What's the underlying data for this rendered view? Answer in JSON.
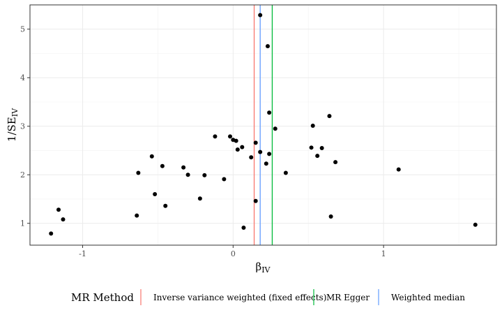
{
  "chart_data": {
    "type": "scatter",
    "xlabel": "β",
    "xlabel_sub": "IV",
    "ylabel": "1/SE",
    "ylabel_sub": "IV",
    "xlim": [
      -1.35,
      1.75
    ],
    "ylim": [
      0.55,
      5.5
    ],
    "x_ticks": [
      -1,
      0,
      1
    ],
    "x_tick_labels": [
      "-1",
      "0",
      "1"
    ],
    "y_ticks": [
      1,
      2,
      3,
      4,
      5
    ],
    "y_tick_labels": [
      "1",
      "2",
      "3",
      "4",
      "5"
    ],
    "grid": true,
    "points": [
      {
        "x": -1.21,
        "y": 0.79
      },
      {
        "x": -1.16,
        "y": 1.28
      },
      {
        "x": -1.13,
        "y": 1.08
      },
      {
        "x": -0.64,
        "y": 1.16
      },
      {
        "x": -0.63,
        "y": 2.04
      },
      {
        "x": -0.54,
        "y": 2.38
      },
      {
        "x": -0.52,
        "y": 1.6
      },
      {
        "x": -0.47,
        "y": 2.18
      },
      {
        "x": -0.45,
        "y": 1.36
      },
      {
        "x": -0.33,
        "y": 2.15
      },
      {
        "x": -0.3,
        "y": 2.0
      },
      {
        "x": -0.22,
        "y": 1.51
      },
      {
        "x": -0.19,
        "y": 1.99
      },
      {
        "x": -0.12,
        "y": 2.79
      },
      {
        "x": -0.06,
        "y": 1.91
      },
      {
        "x": -0.02,
        "y": 2.79
      },
      {
        "x": 0.0,
        "y": 2.72
      },
      {
        "x": 0.02,
        "y": 2.7
      },
      {
        "x": 0.03,
        "y": 2.52
      },
      {
        "x": 0.06,
        "y": 2.57
      },
      {
        "x": 0.07,
        "y": 0.91
      },
      {
        "x": 0.12,
        "y": 2.36
      },
      {
        "x": 0.15,
        "y": 1.46
      },
      {
        "x": 0.15,
        "y": 2.66
      },
      {
        "x": 0.18,
        "y": 2.47
      },
      {
        "x": 0.18,
        "y": 5.29
      },
      {
        "x": 0.22,
        "y": 2.23
      },
      {
        "x": 0.23,
        "y": 4.65
      },
      {
        "x": 0.24,
        "y": 3.28
      },
      {
        "x": 0.24,
        "y": 2.43
      },
      {
        "x": 0.28,
        "y": 2.95
      },
      {
        "x": 0.35,
        "y": 2.04
      },
      {
        "x": 0.52,
        "y": 2.56
      },
      {
        "x": 0.53,
        "y": 3.01
      },
      {
        "x": 0.56,
        "y": 2.39
      },
      {
        "x": 0.59,
        "y": 2.55
      },
      {
        "x": 0.64,
        "y": 3.21
      },
      {
        "x": 0.65,
        "y": 1.14
      },
      {
        "x": 0.68,
        "y": 2.26
      },
      {
        "x": 1.1,
        "y": 2.11
      },
      {
        "x": 1.61,
        "y": 0.97
      }
    ],
    "vlines": [
      {
        "name": "Inverse variance weighted (fixed effects)",
        "x": 0.14,
        "color": "#f8766d"
      },
      {
        "name": "MR Egger",
        "x": 0.26,
        "color": "#00ba38"
      },
      {
        "name": "Weighted median",
        "x": 0.18,
        "color": "#619cff"
      }
    ],
    "legend": {
      "title": "MR Method",
      "placement": "bottom",
      "entries": [
        {
          "label": "Inverse variance weighted (fixed effects)",
          "color": "#f8766d"
        },
        {
          "label": "MR Egger",
          "color": "#00ba38"
        },
        {
          "label": "Weighted median",
          "color": "#619cff"
        }
      ]
    }
  }
}
